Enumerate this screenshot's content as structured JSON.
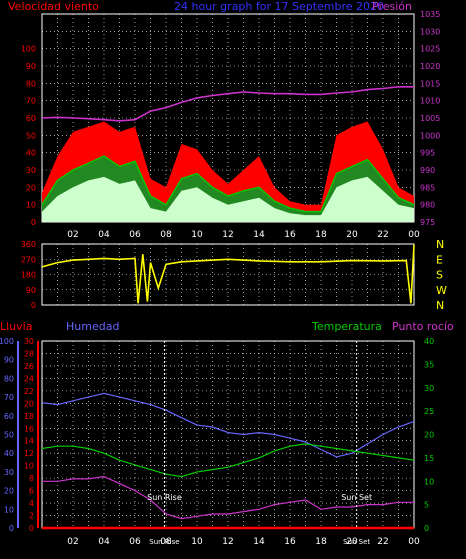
{
  "header": {
    "left_label": "Velocidad viento",
    "center_label": "24 hour graph for  17 Septembre 2020",
    "right_label": "Presión"
  },
  "colors": {
    "background": "#000000",
    "grid": "#ffffff",
    "wind_gust": "#ff0000",
    "wind_avg": "#00cc00",
    "wind_low": "#ccffcc",
    "pressure": "#cc33cc",
    "wind_dir": "#ffff00",
    "rain": "#ff0000",
    "humidity": "#6666ff",
    "temperature": "#00cc00",
    "dewpoint": "#cc33cc",
    "left_axis": "#ff0000",
    "right_axis": "#cc33cc",
    "hum_axis": "#6666ff",
    "rain_axis": "#ff0000",
    "temp_axis": "#00cc00",
    "sun": "#ffffff"
  },
  "x_ticks": [
    "02",
    "04",
    "06",
    "08",
    "10",
    "12",
    "14",
    "16",
    "18",
    "20",
    "22",
    "00"
  ],
  "chart_data": [
    {
      "type": "line",
      "x_hours": [
        0,
        1,
        2,
        3,
        4,
        5,
        6,
        7,
        8,
        9,
        10,
        11,
        12,
        13,
        14,
        15,
        16,
        17,
        18,
        19,
        20,
        21,
        22,
        23,
        24
      ],
      "series": [
        {
          "values": [
            17,
            38,
            52,
            55,
            58,
            52,
            55,
            25,
            20,
            45,
            42,
            30,
            22,
            30,
            38,
            20,
            12,
            10,
            10,
            50,
            55,
            58,
            42,
            20,
            15
          ]
        },
        {
          "values": [
            10,
            24,
            30,
            34,
            38,
            32,
            35,
            15,
            10,
            25,
            28,
            20,
            15,
            18,
            20,
            12,
            8,
            6,
            6,
            28,
            32,
            36,
            25,
            14,
            10
          ]
        },
        {
          "values": [
            6,
            15,
            20,
            24,
            26,
            22,
            24,
            8,
            6,
            18,
            20,
            14,
            10,
            12,
            14,
            8,
            5,
            4,
            4,
            20,
            24,
            26,
            18,
            10,
            8
          ]
        },
        {
          "values": [
            1005,
            1005.2,
            1005,
            1004.8,
            1004.5,
            1004.2,
            1004.5,
            1007,
            1008,
            1009.5,
            1010.8,
            1011.5,
            1012,
            1012.5,
            1012.2,
            1012,
            1012,
            1011.8,
            1011.8,
            1012.2,
            1012.5,
            1013.2,
            1013.5,
            1014,
            1014
          ]
        }
      ],
      "y_left": {
        "ticks": [
          0,
          10,
          20,
          30,
          40,
          50,
          60,
          70,
          80,
          90,
          100
        ],
        "ylim": [
          0,
          100
        ]
      },
      "y_right": {
        "ticks": [
          975,
          980,
          985,
          990,
          995,
          1000,
          1005,
          1010,
          1015,
          1020,
          1025,
          1030,
          1035
        ],
        "ylim": [
          975,
          1035
        ]
      },
      "grid": true
    },
    {
      "type": "line",
      "x_hours": [
        0,
        1,
        2,
        3,
        4,
        5,
        6,
        6.2,
        6.5,
        6.8,
        7,
        7.5,
        8,
        9,
        10,
        12,
        14,
        16,
        18,
        20,
        22,
        23.5,
        23.8,
        24
      ],
      "series": [
        {
          "values": [
            225,
            250,
            265,
            270,
            275,
            270,
            275,
            10,
            300,
            20,
            250,
            100,
            240,
            255,
            260,
            270,
            260,
            255,
            255,
            262,
            260,
            262,
            10,
            355
          ]
        }
      ],
      "y": {
        "ticks": [
          0,
          90,
          180,
          270,
          360
        ],
        "ylim": [
          0,
          360
        ]
      },
      "y_right_labels": [
        "N",
        "W",
        "S",
        "E",
        "N"
      ],
      "grid": true
    },
    {
      "type": "line",
      "x_hours": [
        0,
        1,
        2,
        3,
        4,
        5,
        6,
        7,
        8,
        9,
        10,
        11,
        12,
        13,
        14,
        15,
        16,
        17,
        18,
        19,
        20,
        21,
        22,
        23,
        24
      ],
      "series": [
        {
          "values": [
            0,
            0,
            0,
            0,
            0,
            0,
            0,
            0,
            0,
            0,
            0,
            0,
            0,
            0,
            0,
            0,
            0,
            0,
            0,
            0,
            0,
            0,
            0,
            0,
            0
          ]
        },
        {
          "values": [
            67,
            66,
            68,
            70,
            72,
            70,
            68,
            66,
            63,
            59,
            55,
            54,
            51,
            50,
            51,
            50,
            48,
            46,
            42,
            38,
            40,
            45,
            50,
            54,
            57
          ]
        },
        {
          "values": [
            17,
            17.5,
            17.5,
            17,
            16,
            14.5,
            13.5,
            12.5,
            11.5,
            11,
            12,
            12.5,
            13,
            14,
            15,
            16.5,
            17.5,
            18,
            17.5,
            17,
            16.5,
            16,
            15.5,
            15,
            14.5
          ]
        },
        {
          "values": [
            10,
            10,
            10.5,
            10.5,
            11,
            9.5,
            8,
            6,
            3,
            2,
            2.5,
            3,
            3,
            3.5,
            4,
            5,
            5.5,
            6,
            4,
            4.5,
            4.5,
            5,
            5,
            5.5,
            5.5
          ]
        }
      ],
      "y_hum": {
        "ticks": [
          0,
          10,
          20,
          30,
          40,
          50,
          60,
          70,
          80,
          90,
          100
        ],
        "ylim": [
          0,
          100
        ]
      },
      "y_rain": {
        "ticks": [
          0,
          2,
          4,
          6,
          8,
          10,
          12,
          14,
          16,
          18,
          20,
          22,
          24,
          26,
          28,
          30
        ],
        "ylim": [
          0,
          30
        ]
      },
      "y_temp": {
        "ticks": [
          0,
          5,
          10,
          15,
          20,
          25,
          30,
          35,
          40
        ],
        "ylim": [
          0,
          40
        ]
      },
      "x_sun_labels": [
        "Sun Rise",
        "Sun Set"
      ],
      "x_sun_hours": [
        7.9,
        20.3
      ],
      "x_sun_tick_labels": [
        "Sun Rise",
        "Sun Set"
      ],
      "grid": true
    }
  ],
  "panel3_header": {
    "rain_label": "Lluvia",
    "hum_label": "Humedad",
    "temp_label": "Temperatura",
    "dew_label": "Punto rocío"
  },
  "sun": {
    "rise_label": "Sun Rise",
    "set_label": "Sun Set"
  }
}
